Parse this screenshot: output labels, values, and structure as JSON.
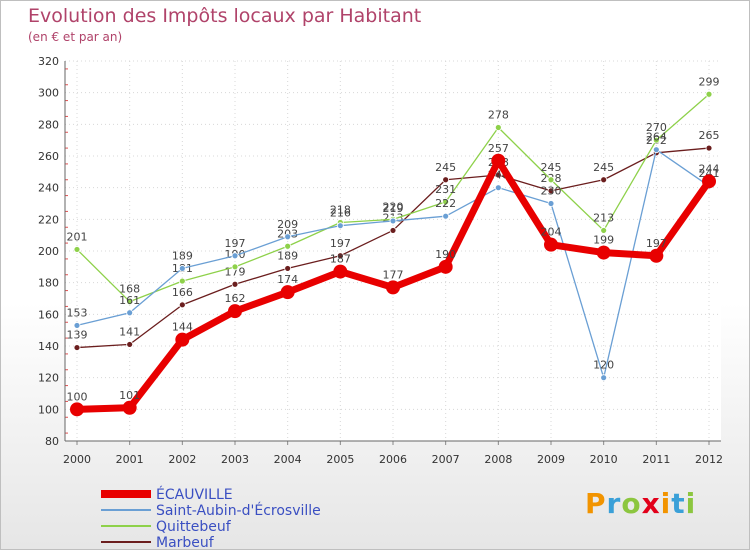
{
  "chart_data": {
    "type": "line",
    "title": "Evolution des Impôts locaux par Habitant",
    "subtitle": "(en € et par an)",
    "xlabel": "",
    "ylabel": "",
    "ylim": [
      80,
      320
    ],
    "yticks": [
      80,
      100,
      120,
      140,
      160,
      180,
      200,
      220,
      240,
      260,
      280,
      300,
      320
    ],
    "categories": [
      "2000",
      "2001",
      "2002",
      "2003",
      "2004",
      "2005",
      "2006",
      "2007",
      "2008",
      "2009",
      "2010",
      "2011",
      "2012"
    ],
    "series": [
      {
        "name": "ÉCAUVILLE",
        "color": "#e80000",
        "values": [
          100,
          101,
          144,
          162,
          174,
          187,
          177,
          190,
          257,
          204,
          199,
          197,
          244
        ]
      },
      {
        "name": "Saint-Aubin-d'Écrosville",
        "color": "#6a9fd4",
        "values": [
          153,
          161,
          189,
          197,
          209,
          216,
          219,
          222,
          240,
          230,
          120,
          264,
          241
        ]
      },
      {
        "name": "Quittebeuf",
        "color": "#8ed14a",
        "values": [
          201,
          168,
          181,
          190,
          203,
          218,
          220,
          231,
          278,
          245,
          213,
          270,
          299
        ]
      },
      {
        "name": "Marbeuf",
        "color": "#6b1e1e",
        "values": [
          139,
          141,
          166,
          179,
          189,
          197,
          213,
          245,
          248,
          238,
          245,
          262,
          265
        ]
      }
    ],
    "grid": true,
    "legend": "bottom-left"
  },
  "logo_text": "Proxiti"
}
